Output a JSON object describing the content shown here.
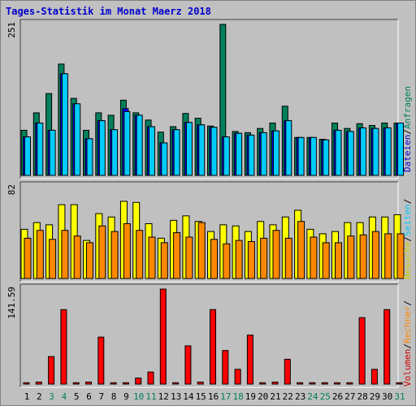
{
  "title": "Tages-Statistik im Monat Maerz 2018",
  "legend": {
    "top": [
      {
        "text": "Dateien",
        "color": "#0000cc"
      },
      {
        "text": "/",
        "color": "#000000"
      },
      {
        "text": "Anfragen",
        "color": "#00805c"
      }
    ],
    "middle": [
      {
        "text": "Besuche",
        "color": "#cccc00"
      },
      {
        "text": "/",
        "color": "#000000"
      },
      {
        "text": "Seiten",
        "color": "#00ccff"
      },
      {
        "text": "/",
        "color": "#000000"
      }
    ],
    "bottom": [
      {
        "text": "Volumen",
        "color": "#cc0000"
      },
      {
        "text": "/",
        "color": "#000000"
      },
      {
        "text": "Rechner",
        "color": "#ff8800"
      },
      {
        "text": "/",
        "color": "#000000"
      }
    ]
  },
  "colors": {
    "anfragen": "#00805c",
    "dateien": "#0000ff",
    "seiten": "#00ccff",
    "besuche": "#ffff00",
    "rechner": "#ff8800",
    "volumen": "#ff0000",
    "weekend_label": "#00805c",
    "weekday_label": "#000000"
  },
  "chart_data": [
    {
      "type": "bar",
      "panel": "top",
      "ylabel": "251",
      "ylim": [
        0,
        251
      ],
      "categories": [
        "1",
        "2",
        "3",
        "4",
        "5",
        "6",
        "7",
        "8",
        "9",
        "10",
        "11",
        "12",
        "13",
        "14",
        "15",
        "16",
        "17",
        "18",
        "19",
        "20",
        "21",
        "22",
        "23",
        "24",
        "25",
        "26",
        "27",
        "28",
        "29",
        "30",
        "31"
      ],
      "weekend": [
        "3",
        "4",
        "10",
        "11",
        "17",
        "18",
        "24",
        "25",
        "31"
      ],
      "series": [
        {
          "name": "Anfragen",
          "key": "anfragen",
          "values": [
            75,
            104,
            136,
            185,
            128,
            75,
            104,
            100,
            125,
            104,
            92,
            72,
            81,
            103,
            95,
            82,
            251,
            73,
            71,
            78,
            87,
            115,
            63,
            63,
            60,
            87,
            78,
            86,
            83,
            87,
            87
          ]
        },
        {
          "name": "Dateien",
          "key": "dateien",
          "values": [
            64,
            87,
            75,
            169,
            119,
            61,
            91,
            76,
            111,
            100,
            81,
            54,
            76,
            88,
            84,
            80,
            64,
            70,
            67,
            71,
            74,
            91,
            63,
            63,
            59,
            75,
            73,
            79,
            78,
            79,
            87
          ]
        },
        {
          "name": "Seiten",
          "key": "seiten",
          "values": [
            64,
            87,
            75,
            169,
            119,
            61,
            91,
            76,
            106,
            100,
            81,
            54,
            76,
            88,
            84,
            80,
            64,
            70,
            67,
            71,
            74,
            91,
            63,
            63,
            59,
            75,
            73,
            79,
            78,
            79,
            87
          ]
        }
      ]
    },
    {
      "type": "bar",
      "panel": "middle",
      "ylabel": "82",
      "ylim": [
        0,
        82
      ],
      "categories": [
        "1",
        "2",
        "3",
        "4",
        "5",
        "6",
        "7",
        "8",
        "9",
        "10",
        "11",
        "12",
        "13",
        "14",
        "15",
        "16",
        "17",
        "18",
        "19",
        "20",
        "21",
        "22",
        "23",
        "24",
        "25",
        "26",
        "27",
        "28",
        "29",
        "30",
        "31"
      ],
      "series": [
        {
          "name": "Besuche",
          "key": "besuche",
          "values": [
            44,
            50,
            48,
            66,
            66,
            34,
            58,
            55,
            69,
            68,
            49,
            36,
            52,
            56,
            51,
            42,
            48,
            47,
            42,
            51,
            48,
            55,
            61,
            44,
            40,
            42,
            50,
            50,
            55,
            55,
            57
          ]
        },
        {
          "name": "Rechner",
          "key": "rechner",
          "values": [
            36,
            43,
            35,
            43,
            38,
            32,
            47,
            42,
            49,
            43,
            37,
            32,
            41,
            37,
            50,
            35,
            31,
            34,
            33,
            36,
            43,
            36,
            51,
            37,
            32,
            32,
            38,
            39,
            42,
            40,
            40
          ]
        }
      ]
    },
    {
      "type": "bar",
      "panel": "bottom",
      "ylabel": "141.59",
      "ylim": [
        0,
        141.59
      ],
      "categories": [
        "1",
        "2",
        "3",
        "4",
        "5",
        "6",
        "7",
        "8",
        "9",
        "10",
        "11",
        "12",
        "13",
        "14",
        "15",
        "16",
        "17",
        "18",
        "19",
        "20",
        "21",
        "22",
        "23",
        "24",
        "25",
        "26",
        "27",
        "28",
        "29",
        "30",
        "31"
      ],
      "series": [
        {
          "name": "Volumen",
          "key": "volumen",
          "values": [
            2,
            3,
            41,
            111,
            2,
            3,
            70,
            2,
            2,
            9,
            18,
            141.59,
            2,
            57,
            3,
            111,
            50,
            22,
            73,
            2,
            3,
            37,
            2,
            2,
            2,
            2,
            2,
            99,
            22,
            111,
            2
          ]
        }
      ]
    }
  ]
}
